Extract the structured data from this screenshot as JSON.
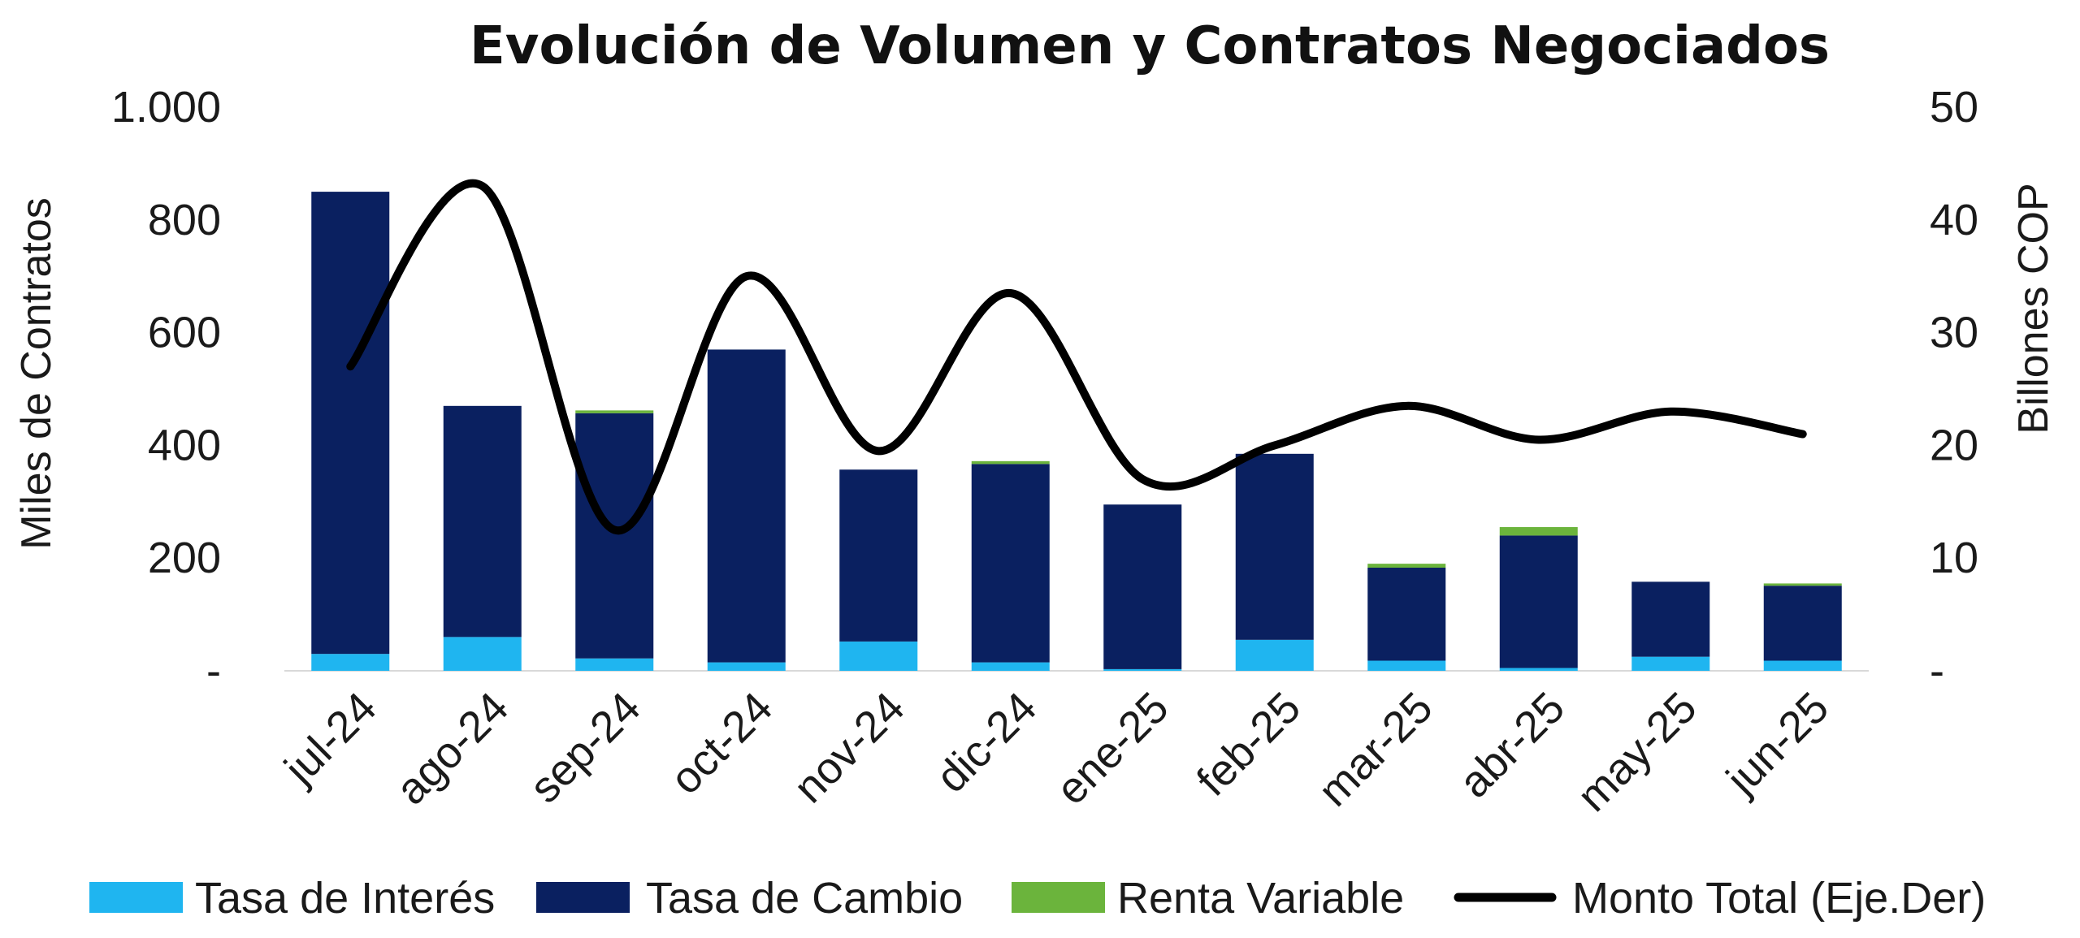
{
  "chart_data": {
    "type": "bar",
    "title": "Evolución de Volumen y Contratos Negociados",
    "categories": [
      "jul-24",
      "ago-24",
      "sep-24",
      "oct-24",
      "nov-24",
      "dic-24",
      "ene-25",
      "feb-25",
      "mar-25",
      "abr-25",
      "may-25",
      "jun-25"
    ],
    "ylabel": "Miles de Contratos",
    "y2label": "Billones COP",
    "ylim": [
      0,
      1000
    ],
    "y2lim": [
      0,
      50
    ],
    "yticks": [
      "-",
      "200",
      "400",
      "600",
      "800",
      "1.000"
    ],
    "y2ticks": [
      "-",
      "10",
      "20",
      "30",
      "40",
      "50"
    ],
    "stacked": true,
    "series": [
      {
        "name": "Tasa de Interés",
        "type": "bar",
        "color": "#1fb5f0",
        "values": [
          30,
          60,
          22,
          15,
          52,
          15,
          3,
          55,
          18,
          5,
          25,
          18
        ]
      },
      {
        "name": "Tasa de Cambio",
        "type": "bar",
        "color": "#0a2060",
        "values": [
          820,
          410,
          435,
          555,
          305,
          352,
          292,
          330,
          165,
          235,
          133,
          133
        ]
      },
      {
        "name": "Renta Variable",
        "type": "bar",
        "color": "#6bb43c",
        "values": [
          0,
          0,
          5,
          0,
          0,
          5,
          0,
          0,
          7,
          15,
          0,
          4
        ]
      },
      {
        "name": "Monto Total (Eje.Der)",
        "type": "line",
        "axis": "right",
        "color": "#000000",
        "values": [
          27,
          43,
          12.5,
          35,
          19.5,
          33.5,
          17,
          20,
          23.5,
          20.5,
          23,
          21
        ]
      }
    ],
    "legend_position": "bottom",
    "grid": false
  }
}
